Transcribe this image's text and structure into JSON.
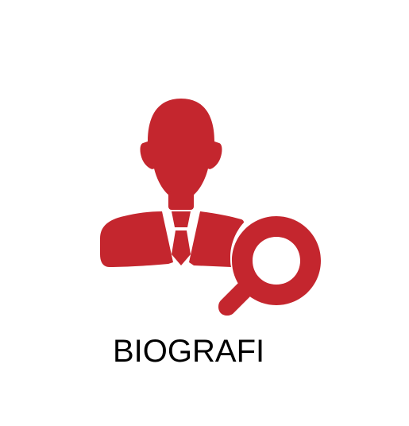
{
  "caption": {
    "text": "BIOGRAFI"
  },
  "icon": {
    "name": "person-search-icon",
    "color": "#c4262e"
  }
}
